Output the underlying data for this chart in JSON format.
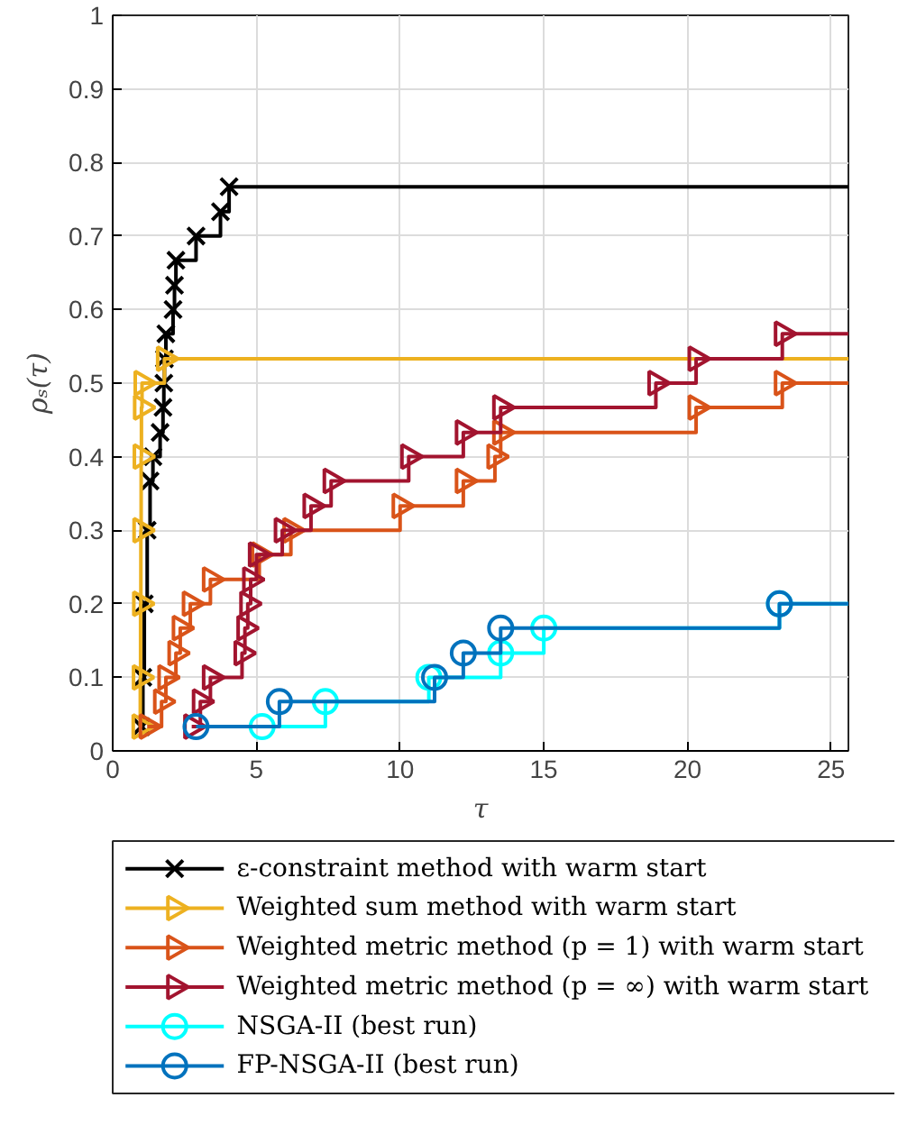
{
  "chart_data": {
    "type": "step",
    "xlabel": "τ",
    "ylabel": "ρₛ(τ)",
    "xlim": [
      0,
      25.6
    ],
    "ylim": [
      0,
      1
    ],
    "xticks": [
      0,
      5,
      10,
      15,
      20,
      25
    ],
    "yticks": [
      0,
      0.1,
      0.2,
      0.3,
      0.4,
      0.5,
      0.6,
      0.7,
      0.8,
      0.9,
      1
    ],
    "grid": true,
    "legend": "bottom",
    "line_style": "solid",
    "series": [
      {
        "name": "ε-constraint method with warm start",
        "color": "#000000",
        "marker": "cross",
        "x": [
          1.0,
          1.05,
          1.1,
          1.2,
          1.3,
          1.4,
          1.65,
          1.75,
          1.78,
          1.8,
          1.85,
          2.1,
          2.15,
          2.2,
          2.9,
          3.75,
          4.05,
          25.6
        ],
        "values": [
          0.033,
          0.1,
          0.2,
          0.3,
          0.367,
          0.4,
          0.433,
          0.467,
          0.5,
          0.533,
          0.567,
          0.6,
          0.633,
          0.667,
          0.7,
          0.733,
          0.767,
          0.767
        ]
      },
      {
        "name": "Weighted sum method with warm start",
        "color": "#edb120",
        "marker": "triangle",
        "x": [
          0.95,
          0.96,
          0.97,
          0.98,
          0.99,
          1.0,
          1.02,
          1.8,
          25.6
        ],
        "values": [
          0.033,
          0.1,
          0.2,
          0.3,
          0.4,
          0.467,
          0.5,
          0.533,
          0.533
        ]
      },
      {
        "name": "Weighted metric method (p = 1) with warm start",
        "color": "#d95319",
        "marker": "triangle",
        "x": [
          1.2,
          1.7,
          1.85,
          2.2,
          2.35,
          2.7,
          3.4,
          5.1,
          6.2,
          10.0,
          12.2,
          13.3,
          13.5,
          20.3,
          23.3,
          25.6
        ],
        "values": [
          0.033,
          0.067,
          0.1,
          0.133,
          0.167,
          0.2,
          0.233,
          0.267,
          0.3,
          0.333,
          0.367,
          0.4,
          0.433,
          0.467,
          0.5,
          0.5
        ]
      },
      {
        "name": "Weighted metric method (p = ∞) with warm start",
        "color": "#a2142f",
        "marker": "triangle",
        "x": [
          2.75,
          3.05,
          3.4,
          4.5,
          4.6,
          4.7,
          4.8,
          5.0,
          5.9,
          6.9,
          7.6,
          10.3,
          12.2,
          13.5,
          18.9,
          20.3,
          23.3,
          25.6
        ],
        "values": [
          0.033,
          0.067,
          0.1,
          0.133,
          0.167,
          0.2,
          0.233,
          0.267,
          0.3,
          0.333,
          0.367,
          0.4,
          0.433,
          0.467,
          0.5,
          0.533,
          0.567,
          0.567
        ]
      },
      {
        "name": "NSGA-II (best run)",
        "color": "#00ffff",
        "marker": "circle",
        "x": [
          5.2,
          7.4,
          11.0,
          13.5,
          15.0,
          23.2,
          25.6
        ],
        "values": [
          0.033,
          0.067,
          0.1,
          0.133,
          0.167,
          0.2,
          0.2
        ]
      },
      {
        "name": "FP-NSGA-II (best run)",
        "color": "#0072bd",
        "marker": "circle",
        "x": [
          2.9,
          5.8,
          11.2,
          12.2,
          13.5,
          23.2,
          25.6
        ],
        "values": [
          0.033,
          0.067,
          0.1,
          0.133,
          0.167,
          0.2,
          0.2
        ]
      }
    ]
  }
}
